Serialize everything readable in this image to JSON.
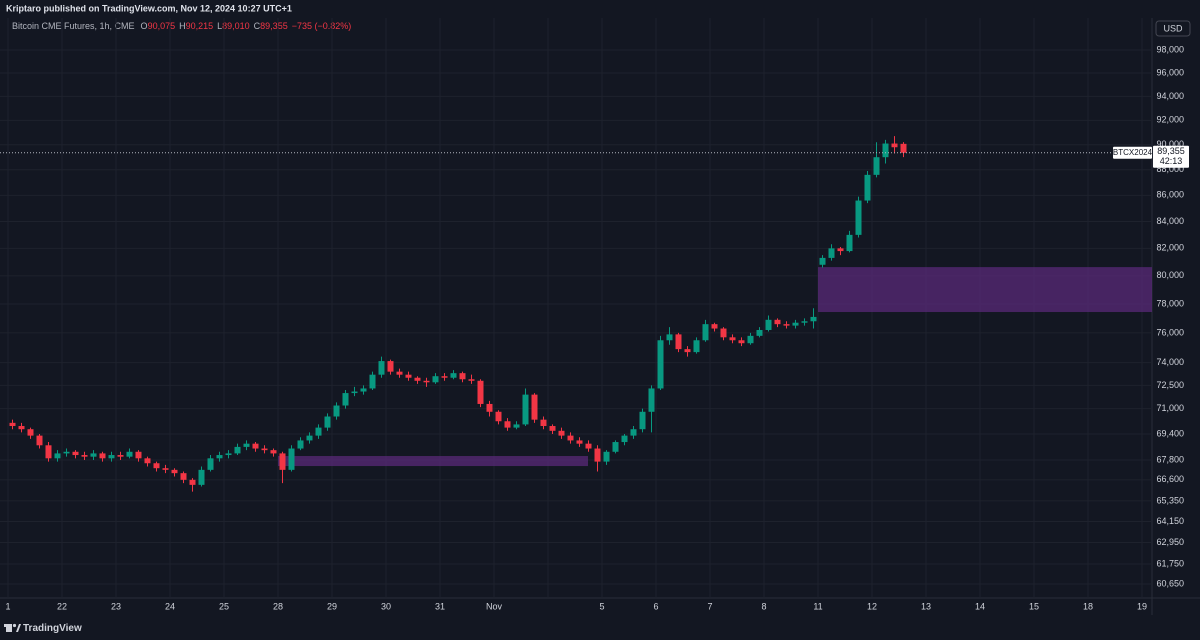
{
  "header": {
    "published": "Kriptaro published on TradingView.com, Nov 12, 2024 10:27 UTC+1"
  },
  "legend": {
    "name": "Bitcoin CME Futures, 1h, CME",
    "o_label": "O",
    "open": "90,075",
    "h_label": "H",
    "high": "90,215",
    "l_label": "L",
    "low": "89,010",
    "c_label": "C",
    "close": "89,355",
    "change": "−735 (−0.82%)"
  },
  "footer": {
    "brand": "TradingView"
  },
  "chart_data": {
    "type": "candlestick",
    "currency": "USD",
    "log_scale": true,
    "grid": true,
    "up_color": "#089981",
    "down_color": "#f23645",
    "zone_color": "#5a2a78",
    "categories": [
      "1",
      "22",
      "23",
      "24",
      "25",
      "28",
      "29",
      "30",
      "31",
      "Nov",
      null,
      "5",
      "6",
      "7",
      "8",
      "11",
      "12",
      "13",
      "14",
      "15",
      "18",
      "19"
    ],
    "ylim": [
      59890,
      100860
    ],
    "yticks": [
      {
        "value": 60650,
        "label": "60,650"
      },
      {
        "value": 61750,
        "label": "61,750"
      },
      {
        "value": 62950,
        "label": "62,950"
      },
      {
        "value": 64150,
        "label": "64,150"
      },
      {
        "value": 65350,
        "label": "65,350"
      },
      {
        "value": 66600,
        "label": "66,600"
      },
      {
        "value": 67800,
        "label": "67,800"
      },
      {
        "value": 69400,
        "label": "69,400"
      },
      {
        "value": 71000,
        "label": "71,000"
      },
      {
        "value": 72500,
        "label": "72,500"
      },
      {
        "value": 74000,
        "label": "74,000"
      },
      {
        "value": 76000,
        "label": "76,000"
      },
      {
        "value": 78000,
        "label": "78,000"
      },
      {
        "value": 80000,
        "label": "80,000"
      },
      {
        "value": 82000,
        "label": "82,000"
      },
      {
        "value": 84000,
        "label": "84,000"
      },
      {
        "value": 86000,
        "label": "86,000"
      },
      {
        "value": 88000,
        "label": "88,000"
      },
      {
        "value": 90000,
        "label": "90,000"
      },
      {
        "value": 92000,
        "label": "92,000"
      },
      {
        "value": 94000,
        "label": "94,000"
      },
      {
        "value": 96000,
        "label": "96,000"
      },
      {
        "value": 98000,
        "label": "98,000"
      }
    ],
    "zones": [
      {
        "top": 68040,
        "bottom": 67430
      },
      {
        "top": 80630,
        "bottom": 77440
      }
    ],
    "last_price": {
      "symbol": "BTCX2024",
      "price": 89355,
      "price_label": "89,355",
      "countdown": "42:13"
    },
    "candles": [
      [
        70100,
        70300,
        69700,
        69900
      ],
      [
        69900,
        70100,
        69500,
        69700
      ],
      [
        69700,
        69800,
        69100,
        69300
      ],
      [
        69300,
        69400,
        68500,
        68700
      ],
      [
        68700,
        68900,
        67700,
        67900
      ],
      [
        67900,
        68400,
        67700,
        68200
      ],
      [
        68200,
        68500,
        68000,
        68300
      ],
      [
        68300,
        68400,
        67900,
        68100
      ],
      [
        68100,
        68300,
        67800,
        68000
      ],
      [
        68000,
        68400,
        67800,
        68200
      ],
      [
        68200,
        68300,
        67700,
        67900
      ],
      [
        67900,
        68300,
        67700,
        68100
      ],
      [
        68100,
        68300,
        67800,
        68000
      ],
      [
        68000,
        68500,
        67900,
        68300
      ],
      [
        68300,
        68400,
        67700,
        67900
      ],
      [
        67900,
        68000,
        67400,
        67600
      ],
      [
        67600,
        67700,
        67100,
        67300
      ],
      [
        67300,
        67500,
        67000,
        67200
      ],
      [
        67200,
        67300,
        66800,
        67000
      ],
      [
        67000,
        67100,
        66400,
        66600
      ],
      [
        66600,
        66700,
        65900,
        66300
      ],
      [
        66300,
        67400,
        66200,
        67200
      ],
      [
        67200,
        68100,
        67100,
        67900
      ],
      [
        67900,
        68300,
        67700,
        68100
      ],
      [
        68100,
        68400,
        67900,
        68200
      ],
      [
        68200,
        68800,
        68100,
        68600
      ],
      [
        68600,
        69000,
        68400,
        68800
      ],
      [
        68800,
        68900,
        68300,
        68500
      ],
      [
        68500,
        68700,
        68200,
        68400
      ],
      [
        68400,
        68500,
        68000,
        68200
      ],
      [
        68200,
        68300,
        66400,
        67200
      ],
      [
        67200,
        68700,
        67100,
        68500
      ],
      [
        68500,
        69200,
        68400,
        69000
      ],
      [
        69000,
        69500,
        68800,
        69300
      ],
      [
        69300,
        70000,
        69100,
        69800
      ],
      [
        69800,
        70700,
        69600,
        70500
      ],
      [
        70500,
        71400,
        70300,
        71200
      ],
      [
        71200,
        72200,
        71000,
        72000
      ],
      [
        72000,
        72400,
        71800,
        72100
      ],
      [
        72100,
        72500,
        71900,
        72300
      ],
      [
        72300,
        73400,
        72200,
        73200
      ],
      [
        73200,
        74400,
        73000,
        74100
      ],
      [
        74100,
        74200,
        73200,
        73400
      ],
      [
        73400,
        73600,
        73000,
        73200
      ],
      [
        73200,
        73400,
        72800,
        73000
      ],
      [
        73000,
        73100,
        72600,
        72800
      ],
      [
        72800,
        73000,
        72400,
        72700
      ],
      [
        72700,
        73300,
        72600,
        73100
      ],
      [
        73100,
        73300,
        72800,
        73000
      ],
      [
        73000,
        73500,
        72900,
        73300
      ],
      [
        73300,
        73400,
        72700,
        72900
      ],
      [
        72900,
        73200,
        72600,
        72800
      ],
      [
        72800,
        72900,
        71100,
        71300
      ],
      [
        71300,
        71500,
        70500,
        70800
      ],
      [
        70800,
        70900,
        70000,
        70200
      ],
      [
        70200,
        70400,
        69600,
        69800
      ],
      [
        69800,
        70200,
        69700,
        70000
      ],
      [
        70000,
        72300,
        69900,
        71900
      ],
      [
        71900,
        72000,
        70100,
        70300
      ],
      [
        70300,
        70500,
        69700,
        69900
      ],
      [
        69900,
        70000,
        69400,
        69600
      ],
      [
        69600,
        69800,
        69100,
        69300
      ],
      [
        69300,
        69500,
        68800,
        69000
      ],
      [
        69000,
        69200,
        68600,
        68800
      ],
      [
        68800,
        69000,
        68300,
        68500
      ],
      [
        68500,
        68700,
        67100,
        67700
      ],
      [
        67700,
        68400,
        67500,
        68300
      ],
      [
        68300,
        69000,
        68200,
        68900
      ],
      [
        68900,
        69400,
        68700,
        69300
      ],
      [
        69300,
        69900,
        69100,
        69700
      ],
      [
        69700,
        71000,
        69500,
        70800
      ],
      [
        70800,
        72500,
        69500,
        72300
      ],
      [
        72300,
        75800,
        72200,
        75500
      ],
      [
        75500,
        76400,
        75200,
        75900
      ],
      [
        75900,
        76000,
        74700,
        74900
      ],
      [
        74900,
        75100,
        74400,
        74700
      ],
      [
        74700,
        75700,
        74600,
        75500
      ],
      [
        75500,
        76900,
        75400,
        76600
      ],
      [
        76600,
        76700,
        76100,
        76300
      ],
      [
        76300,
        76400,
        75500,
        75700
      ],
      [
        75700,
        75900,
        75300,
        75500
      ],
      [
        75500,
        75700,
        75100,
        75300
      ],
      [
        75300,
        76000,
        75200,
        75800
      ],
      [
        75800,
        76400,
        75700,
        76200
      ],
      [
        76200,
        77200,
        76100,
        76900
      ],
      [
        76900,
        77000,
        76400,
        76600
      ],
      [
        76600,
        76800,
        76300,
        76500
      ],
      [
        76500,
        76900,
        76300,
        76700
      ],
      [
        76700,
        77000,
        76500,
        76800
      ],
      [
        76800,
        77700,
        76300,
        77100
      ],
      [
        80800,
        81500,
        80600,
        81300
      ],
      [
        81300,
        82300,
        81100,
        82000
      ],
      [
        82000,
        82100,
        81500,
        81800
      ],
      [
        81800,
        83300,
        81700,
        83000
      ],
      [
        83000,
        85900,
        82800,
        85600
      ],
      [
        85600,
        87900,
        85400,
        87600
      ],
      [
        87600,
        90200,
        87400,
        89000
      ],
      [
        89000,
        90400,
        88500,
        90100
      ],
      [
        90100,
        90700,
        89300,
        89800
      ],
      [
        90075,
        90215,
        89010,
        89355
      ]
    ]
  }
}
